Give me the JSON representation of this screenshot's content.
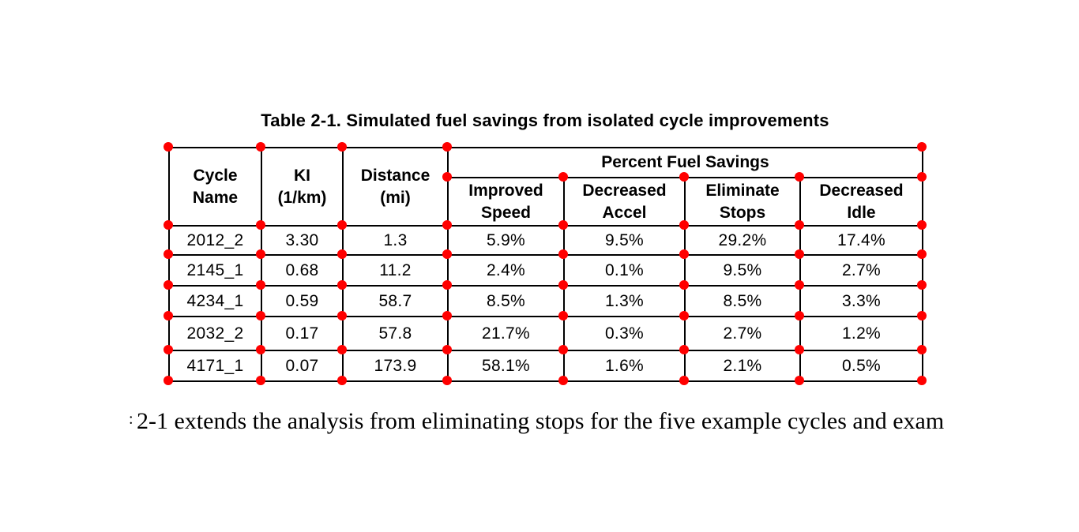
{
  "table": {
    "title": "Table 2-1. Simulated fuel savings from isolated cycle improvements",
    "group_header": "Percent Fuel Savings",
    "columns": {
      "cycle_name": "Cycle\nName",
      "ki": "KI\n(1/km)",
      "distance": "Distance\n(mi)"
    },
    "sub_columns": {
      "improved_speed": "Improved\nSpeed",
      "decreased_accel": "Decreased\nAccel",
      "eliminate_stops": "Eliminate\nStops",
      "decreased_idle": "Decreased\nIdle"
    },
    "rows": [
      [
        "2012_2",
        "3.30",
        "1.3",
        "5.9%",
        "9.5%",
        "29.2%",
        "17.4%"
      ],
      [
        "2145_1",
        "0.68",
        "11.2",
        "2.4%",
        "0.1%",
        "9.5%",
        "2.7%"
      ],
      [
        "4234_1",
        "0.59",
        "58.7",
        "8.5%",
        "1.3%",
        "8.5%",
        "3.3%"
      ],
      [
        "2032_2",
        "0.17",
        "57.8",
        "21.7%",
        "0.3%",
        "2.7%",
        "1.2%"
      ],
      [
        "4171_1",
        "0.07",
        "173.9",
        "58.1%",
        "1.6%",
        "2.1%",
        "0.5%"
      ]
    ]
  },
  "paragraph": {
    "clipped_fragment": ":",
    "text": "2-1 extends the analysis from eliminating stops for the five example cycles and exam"
  },
  "annotation": {
    "dot_color": "#ff0000"
  }
}
